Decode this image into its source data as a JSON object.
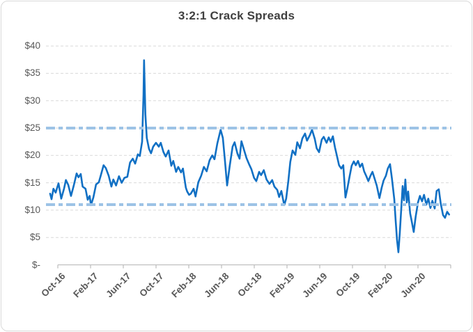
{
  "chart_data": {
    "type": "line",
    "title": "3:2:1 Crack Spreads",
    "grid": true,
    "legend": "none",
    "ylim": [
      0,
      40
    ],
    "y_axis": {
      "tick_labels": [
        "$40",
        "$35",
        "$30",
        "$25",
        "$20",
        "$15",
        "$10",
        "$5",
        "$-"
      ],
      "tick_values": [
        40,
        35,
        30,
        25,
        20,
        15,
        10,
        5,
        0
      ]
    },
    "x_axis": {
      "tick_labels": [
        "Oct-16",
        "Feb-17",
        "Jun-17",
        "Oct-17",
        "Feb-18",
        "Jun-18",
        "Oct-18",
        "Feb-19",
        "Jun-19",
        "Oct-19",
        "Feb-20",
        "Jun-20"
      ]
    },
    "reference_lines": [
      {
        "value": 25,
        "style": "dashed",
        "color": "#9DC3E6"
      },
      {
        "value": 11,
        "style": "dashed",
        "color": "#9DC3E6"
      }
    ],
    "colors": {
      "line": "#1170C4",
      "reference": "#9DC3E6",
      "gridline": "#D9D9D9",
      "axis": "#BFBFBF",
      "title_text": "#404040",
      "tick_text": "#595959",
      "border": "#D9D9D9"
    },
    "series": [
      {
        "name": "3:2:1 crack spread",
        "color": "#1170C4",
        "points": [
          [
            "2016-10-01",
            13.0
          ],
          [
            "2016-10-06",
            12.0
          ],
          [
            "2016-10-13",
            13.9
          ],
          [
            "2016-10-21",
            13.2
          ],
          [
            "2016-11-01",
            14.9
          ],
          [
            "2016-11-11",
            12.1
          ],
          [
            "2016-11-21",
            13.9
          ],
          [
            "2016-11-28",
            15.5
          ],
          [
            "2016-12-06",
            14.6
          ],
          [
            "2016-12-16",
            12.6
          ],
          [
            "2016-12-26",
            14.5
          ],
          [
            "2017-01-06",
            16.7
          ],
          [
            "2017-01-13",
            16.0
          ],
          [
            "2017-01-21",
            16.6
          ],
          [
            "2017-01-28",
            14.3
          ],
          [
            "2017-02-08",
            13.9
          ],
          [
            "2017-02-16",
            11.9
          ],
          [
            "2017-02-23",
            12.6
          ],
          [
            "2017-02-28",
            10.9
          ],
          [
            "2017-03-06",
            12.3
          ],
          [
            "2017-03-16",
            14.7
          ],
          [
            "2017-03-26",
            15.1
          ],
          [
            "2017-04-03",
            16.4
          ],
          [
            "2017-04-13",
            18.2
          ],
          [
            "2017-04-21",
            17.7
          ],
          [
            "2017-05-01",
            16.3
          ],
          [
            "2017-05-11",
            14.3
          ],
          [
            "2017-05-18",
            15.6
          ],
          [
            "2017-05-28",
            14.5
          ],
          [
            "2017-06-08",
            16.2
          ],
          [
            "2017-06-18",
            15.0
          ],
          [
            "2017-06-28",
            15.9
          ],
          [
            "2017-07-08",
            16.1
          ],
          [
            "2017-07-18",
            18.7
          ],
          [
            "2017-07-28",
            19.4
          ],
          [
            "2017-08-06",
            18.5
          ],
          [
            "2017-08-16",
            20.2
          ],
          [
            "2017-08-23",
            19.9
          ],
          [
            "2017-09-01",
            22.5
          ],
          [
            "2017-09-06",
            31.0
          ],
          [
            "2017-09-08",
            37.4
          ],
          [
            "2017-09-13",
            27.5
          ],
          [
            "2017-09-18",
            23.2
          ],
          [
            "2017-09-26",
            21.2
          ],
          [
            "2017-10-03",
            20.4
          ],
          [
            "2017-10-11",
            21.6
          ],
          [
            "2017-10-21",
            22.3
          ],
          [
            "2017-11-01",
            21.6
          ],
          [
            "2017-11-08",
            22.3
          ],
          [
            "2017-11-18",
            20.6
          ],
          [
            "2017-11-26",
            19.8
          ],
          [
            "2017-12-06",
            20.9
          ],
          [
            "2017-12-16",
            18.1
          ],
          [
            "2017-12-23",
            19.0
          ],
          [
            "2018-01-03",
            17.0
          ],
          [
            "2018-01-11",
            17.9
          ],
          [
            "2018-01-21",
            16.9
          ],
          [
            "2018-01-28",
            17.6
          ],
          [
            "2018-02-08",
            14.1
          ],
          [
            "2018-02-13",
            13.4
          ],
          [
            "2018-02-20",
            12.8
          ],
          [
            "2018-02-26",
            13.0
          ],
          [
            "2018-03-06",
            13.9
          ],
          [
            "2018-03-13",
            12.5
          ],
          [
            "2018-03-23",
            15.1
          ],
          [
            "2018-04-03",
            16.3
          ],
          [
            "2018-04-13",
            17.9
          ],
          [
            "2018-04-23",
            17.1
          ],
          [
            "2018-05-03",
            19.1
          ],
          [
            "2018-05-13",
            20.0
          ],
          [
            "2018-05-21",
            19.3
          ],
          [
            "2018-06-01",
            22.2
          ],
          [
            "2018-06-13",
            24.7
          ],
          [
            "2018-06-21",
            23.2
          ],
          [
            "2018-06-28",
            19.5
          ],
          [
            "2018-07-06",
            14.5
          ],
          [
            "2018-07-16",
            18.2
          ],
          [
            "2018-07-26",
            21.6
          ],
          [
            "2018-08-03",
            22.4
          ],
          [
            "2018-08-13",
            20.4
          ],
          [
            "2018-08-21",
            19.4
          ],
          [
            "2018-08-28",
            22.6
          ],
          [
            "2018-09-08",
            20.8
          ],
          [
            "2018-09-16",
            19.5
          ],
          [
            "2018-09-26",
            18.3
          ],
          [
            "2018-10-03",
            17.5
          ],
          [
            "2018-10-13",
            15.9
          ],
          [
            "2018-10-21",
            15.3
          ],
          [
            "2018-11-01",
            17.0
          ],
          [
            "2018-11-08",
            16.4
          ],
          [
            "2018-11-18",
            17.3
          ],
          [
            "2018-11-28",
            15.6
          ],
          [
            "2018-12-08",
            14.8
          ],
          [
            "2018-12-18",
            15.5
          ],
          [
            "2018-12-26",
            14.3
          ],
          [
            "2019-01-06",
            13.7
          ],
          [
            "2019-01-13",
            12.4
          ],
          [
            "2019-01-21",
            13.5
          ],
          [
            "2019-02-01",
            10.9
          ],
          [
            "2019-02-08",
            12.1
          ],
          [
            "2019-02-16",
            15.3
          ],
          [
            "2019-02-23",
            18.8
          ],
          [
            "2019-03-01",
            20.9
          ],
          [
            "2019-03-11",
            20.1
          ],
          [
            "2019-03-18",
            22.4
          ],
          [
            "2019-03-28",
            21.3
          ],
          [
            "2019-04-06",
            23.1
          ],
          [
            "2019-04-16",
            24.0
          ],
          [
            "2019-04-23",
            22.7
          ],
          [
            "2019-05-03",
            23.7
          ],
          [
            "2019-05-11",
            24.7
          ],
          [
            "2019-05-21",
            23.0
          ],
          [
            "2019-05-28",
            21.3
          ],
          [
            "2019-06-06",
            20.6
          ],
          [
            "2019-06-16",
            22.9
          ],
          [
            "2019-06-23",
            23.4
          ],
          [
            "2019-07-03",
            22.3
          ],
          [
            "2019-07-11",
            23.3
          ],
          [
            "2019-07-18",
            22.5
          ],
          [
            "2019-07-26",
            23.5
          ],
          [
            "2019-08-03",
            21.5
          ],
          [
            "2019-08-11",
            19.8
          ],
          [
            "2019-08-18",
            18.2
          ],
          [
            "2019-08-26",
            17.6
          ],
          [
            "2019-09-03",
            18.2
          ],
          [
            "2019-09-11",
            12.3
          ],
          [
            "2019-09-18",
            14.0
          ],
          [
            "2019-09-26",
            16.2
          ],
          [
            "2019-10-03",
            18.1
          ],
          [
            "2019-10-11",
            18.9
          ],
          [
            "2019-10-18",
            18.2
          ],
          [
            "2019-10-26",
            19.0
          ],
          [
            "2019-11-03",
            17.9
          ],
          [
            "2019-11-11",
            18.5
          ],
          [
            "2019-11-18",
            17.1
          ],
          [
            "2019-11-26",
            16.2
          ],
          [
            "2019-12-03",
            15.3
          ],
          [
            "2019-12-11",
            16.3
          ],
          [
            "2019-12-18",
            17.0
          ],
          [
            "2019-12-26",
            15.7
          ],
          [
            "2020-01-03",
            14.5
          ],
          [
            "2020-01-13",
            12.2
          ],
          [
            "2020-01-21",
            14.1
          ],
          [
            "2020-01-28",
            15.4
          ],
          [
            "2020-02-06",
            16.3
          ],
          [
            "2020-02-13",
            17.6
          ],
          [
            "2020-02-21",
            18.4
          ],
          [
            "2020-02-28",
            15.8
          ],
          [
            "2020-03-06",
            12.0
          ],
          [
            "2020-03-11",
            8.2
          ],
          [
            "2020-03-16",
            4.6
          ],
          [
            "2020-03-21",
            2.3
          ],
          [
            "2020-03-26",
            5.8
          ],
          [
            "2020-04-01",
            10.2
          ],
          [
            "2020-04-06",
            14.4
          ],
          [
            "2020-04-11",
            11.8
          ],
          [
            "2020-04-16",
            15.6
          ],
          [
            "2020-04-21",
            11.4
          ],
          [
            "2020-04-26",
            13.4
          ],
          [
            "2020-05-03",
            9.4
          ],
          [
            "2020-05-08",
            8.1
          ],
          [
            "2020-05-16",
            6.0
          ],
          [
            "2020-05-23",
            8.8
          ],
          [
            "2020-06-01",
            11.4
          ],
          [
            "2020-06-08",
            12.6
          ],
          [
            "2020-06-16",
            11.6
          ],
          [
            "2020-06-23",
            12.8
          ],
          [
            "2020-07-01",
            11.0
          ],
          [
            "2020-07-08",
            12.1
          ],
          [
            "2020-07-16",
            10.4
          ],
          [
            "2020-07-23",
            11.7
          ],
          [
            "2020-08-01",
            10.3
          ],
          [
            "2020-08-08",
            13.5
          ],
          [
            "2020-08-16",
            13.8
          ],
          [
            "2020-08-23",
            11.2
          ],
          [
            "2020-09-01",
            9.1
          ],
          [
            "2020-09-08",
            8.6
          ],
          [
            "2020-09-16",
            9.7
          ],
          [
            "2020-09-23",
            9.2
          ]
        ]
      }
    ]
  }
}
